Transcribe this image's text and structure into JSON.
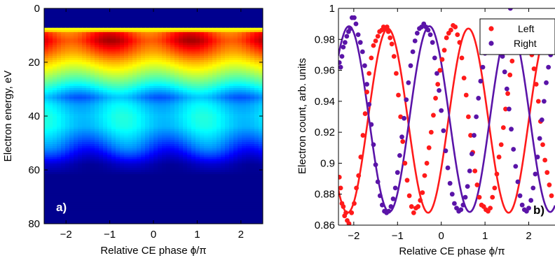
{
  "chart_data": [
    {
      "type": "heatmap",
      "panel_label": "a)",
      "xlabel": "Relative CE phase ϕ/π",
      "ylabel": "Electron energy, eV",
      "xlim": [
        -2.5,
        2.5
      ],
      "ylim": [
        80,
        0
      ],
      "x_ticks": [
        -2,
        -1,
        0,
        1,
        2
      ],
      "y_ticks": [
        0,
        20,
        40,
        60,
        80
      ],
      "colormap": "jet",
      "colormap_stops": [
        "#00008f",
        "#0000ff",
        "#0080ff",
        "#00ffff",
        "#80ff80",
        "#ffff00",
        "#ff8000",
        "#ff0000",
        "#800000"
      ],
      "energy_bands": [
        {
          "energy": 0,
          "level": 0.0,
          "mod": 0.0
        },
        {
          "energy": 6.8,
          "level": 0.0,
          "mod": 0.0
        },
        {
          "energy": 7.2,
          "level": 0.62,
          "mod": 0.0
        },
        {
          "energy": 8.2,
          "level": 0.62,
          "mod": 0.0
        },
        {
          "energy": 9,
          "level": 0.82,
          "mod": 0.08
        },
        {
          "energy": 12,
          "level": 0.88,
          "mod": 0.09
        },
        {
          "energy": 16,
          "level": 0.78,
          "mod": 0.06
        },
        {
          "energy": 20,
          "level": 0.66,
          "mod": 0.04
        },
        {
          "energy": 24,
          "level": 0.55,
          "mod": 0.04
        },
        {
          "energy": 27,
          "level": 0.46,
          "mod": 0.04
        },
        {
          "energy": 30,
          "level": 0.36,
          "mod": 0.05
        },
        {
          "energy": 33,
          "level": 0.26,
          "mod": 0.06
        },
        {
          "energy": 36,
          "level": 0.33,
          "mod": 0.05
        },
        {
          "energy": 40,
          "level": 0.36,
          "mod": 0.05
        },
        {
          "energy": 44,
          "level": 0.35,
          "mod": 0.05
        },
        {
          "energy": 48,
          "level": 0.28,
          "mod": 0.06
        },
        {
          "energy": 52,
          "level": 0.2,
          "mod": 0.07
        },
        {
          "energy": 55,
          "level": 0.12,
          "mod": 0.06
        },
        {
          "energy": 58,
          "level": 0.04,
          "mod": 0.03
        },
        {
          "energy": 62,
          "level": 0.0,
          "mod": 0.0
        },
        {
          "energy": 80,
          "level": 0.0,
          "mod": 0.0
        }
      ]
    },
    {
      "type": "scatter",
      "panel_label": "b)",
      "xlabel": "Relative CE phase ϕ/π",
      "ylabel": "Electron count, arb. units",
      "xlim": [
        -2.35,
        2.6
      ],
      "ylim": [
        0.86,
        1.0
      ],
      "x_ticks": [
        -2,
        -1,
        0,
        1,
        2
      ],
      "y_ticks": [
        0.86,
        0.88,
        0.9,
        0.92,
        0.94,
        0.96,
        0.98,
        1
      ],
      "y_tick_labels": [
        "0.86",
        "0.88",
        "0.9",
        "0.92",
        "0.94",
        "0.96",
        "0.98",
        "1"
      ],
      "legend_position": "top-right",
      "series": [
        {
          "name": "Left",
          "color": "#ff1a1a",
          "fit": {
            "mean": 0.9275,
            "amplitude": 0.0595,
            "period": 1.84,
            "peak_x": -1.22
          },
          "points": [
            [
              -2.33,
              0.891
            ],
            [
              -2.3,
              0.884
            ],
            [
              -2.27,
              0.874
            ],
            [
              -2.24,
              0.872
            ],
            [
              -2.21,
              0.866
            ],
            [
              -2.18,
              0.868
            ],
            [
              -2.15,
              0.863
            ],
            [
              -2.11,
              0.861
            ],
            [
              -2.05,
              0.868
            ],
            [
              -1.99,
              0.874
            ],
            [
              -1.94,
              0.884
            ],
            [
              -1.89,
              0.892
            ],
            [
              -1.84,
              0.904
            ],
            [
              -1.79,
              0.918
            ],
            [
              -1.74,
              0.932
            ],
            [
              -1.7,
              0.946
            ],
            [
              -1.65,
              0.958
            ],
            [
              -1.6,
              0.968
            ],
            [
              -1.55,
              0.976
            ],
            [
              -1.5,
              0.979
            ],
            [
              -1.45,
              0.982
            ],
            [
              -1.41,
              0.985
            ],
            [
              -1.36,
              0.986
            ],
            [
              -1.32,
              0.988
            ],
            [
              -1.28,
              0.987
            ],
            [
              -1.24,
              0.988
            ],
            [
              -1.21,
              0.985
            ],
            [
              -1.17,
              0.981
            ],
            [
              -1.13,
              0.977
            ],
            [
              -1.08,
              0.969
            ],
            [
              -1.03,
              0.958
            ],
            [
              -0.98,
              0.944
            ],
            [
              -0.93,
              0.93
            ],
            [
              -0.88,
              0.914
            ],
            [
              -0.83,
              0.9
            ],
            [
              -0.78,
              0.889
            ],
            [
              -0.73,
              0.879
            ],
            [
              -0.68,
              0.872
            ],
            [
              -0.63,
              0.868
            ],
            [
              -0.58,
              0.871
            ],
            [
              -0.53,
              0.872
            ],
            [
              -0.48,
              0.876
            ],
            [
              -0.43,
              0.881
            ],
            [
              -0.38,
              0.892
            ],
            [
              -0.33,
              0.9
            ],
            [
              -0.28,
              0.91
            ],
            [
              -0.23,
              0.92
            ],
            [
              -0.18,
              0.931
            ],
            [
              -0.13,
              0.942
            ],
            [
              -0.08,
              0.951
            ],
            [
              -0.03,
              0.96
            ],
            [
              0.02,
              0.967
            ],
            [
              0.07,
              0.973
            ],
            [
              0.12,
              0.981
            ],
            [
              0.17,
              0.984
            ],
            [
              0.22,
              0.986
            ],
            [
              0.27,
              0.989
            ],
            [
              0.32,
              0.988
            ],
            [
              0.37,
              0.983
            ],
            [
              0.42,
              0.978
            ],
            [
              0.47,
              0.968
            ],
            [
              0.52,
              0.955
            ],
            [
              0.57,
              0.944
            ],
            [
              0.62,
              0.93
            ],
            [
              0.67,
              0.918
            ],
            [
              0.72,
              0.907
            ],
            [
              0.77,
              0.895
            ],
            [
              0.82,
              0.886
            ],
            [
              0.87,
              0.878
            ],
            [
              0.92,
              0.873
            ],
            [
              0.97,
              0.872
            ],
            [
              1.02,
              0.87
            ],
            [
              1.07,
              0.869
            ],
            [
              1.12,
              0.871
            ],
            [
              1.17,
              0.878
            ],
            [
              1.22,
              0.884
            ],
            [
              1.27,
              0.893
            ],
            [
              1.32,
              0.904
            ],
            [
              1.37,
              0.912
            ],
            [
              1.42,
              0.923
            ],
            [
              1.47,
              0.935
            ],
            [
              1.52,
              0.945
            ],
            [
              1.57,
              0.957
            ],
            [
              1.62,
              0.966
            ],
            [
              1.67,
              0.972
            ],
            [
              1.72,
              0.98
            ],
            [
              1.77,
              0.985
            ],
            [
              1.82,
              0.987
            ],
            [
              1.87,
              0.989
            ],
            [
              1.92,
              0.987
            ],
            [
              1.97,
              0.984
            ],
            [
              2.02,
              0.978
            ],
            [
              2.07,
              0.97
            ],
            [
              2.12,
              0.961
            ],
            [
              2.17,
              0.951
            ],
            [
              2.22,
              0.94
            ],
            [
              2.27,
              0.927
            ],
            [
              2.32,
              0.912
            ],
            [
              2.37,
              0.902
            ],
            [
              2.42,
              0.894
            ],
            [
              2.47,
              0.886
            ],
            [
              2.52,
              0.879
            ]
          ]
        },
        {
          "name": "Right",
          "color": "#5a14a8",
          "fit": {
            "mean": 0.9285,
            "amplitude": 0.06,
            "period": 1.84,
            "peak_x": -2.11
          },
          "points": [
            [
              -2.33,
              0.965
            ],
            [
              -2.3,
              0.962
            ],
            [
              -2.27,
              0.969
            ],
            [
              -2.24,
              0.975
            ],
            [
              -2.2,
              0.978
            ],
            [
              -2.16,
              0.982
            ],
            [
              -2.12,
              0.985
            ],
            [
              -2.08,
              0.987
            ],
            [
              -2.04,
              0.994
            ],
            [
              -1.99,
              0.994
            ],
            [
              -1.95,
              0.99
            ],
            [
              -1.9,
              0.983
            ],
            [
              -1.85,
              0.978
            ],
            [
              -1.8,
              0.972
            ],
            [
              -1.75,
              0.963
            ],
            [
              -1.7,
              0.951
            ],
            [
              -1.65,
              0.938
            ],
            [
              -1.6,
              0.925
            ],
            [
              -1.55,
              0.912
            ],
            [
              -1.5,
              0.899
            ],
            [
              -1.45,
              0.888
            ],
            [
              -1.4,
              0.879
            ],
            [
              -1.35,
              0.873
            ],
            [
              -1.3,
              0.869
            ],
            [
              -1.25,
              0.868
            ],
            [
              -1.2,
              0.869
            ],
            [
              -1.15,
              0.872
            ],
            [
              -1.1,
              0.877
            ],
            [
              -1.05,
              0.884
            ],
            [
              -1.0,
              0.894
            ],
            [
              -0.95,
              0.905
            ],
            [
              -0.9,
              0.917
            ],
            [
              -0.85,
              0.929
            ],
            [
              -0.8,
              0.941
            ],
            [
              -0.75,
              0.952
            ],
            [
              -0.7,
              0.963
            ],
            [
              -0.65,
              0.972
            ],
            [
              -0.6,
              0.979
            ],
            [
              -0.55,
              0.984
            ],
            [
              -0.5,
              0.987
            ],
            [
              -0.45,
              0.988
            ],
            [
              -0.4,
              0.99
            ],
            [
              -0.35,
              0.988
            ],
            [
              -0.3,
              0.986
            ],
            [
              -0.25,
              0.983
            ],
            [
              -0.2,
              0.978
            ],
            [
              -0.15,
              0.968
            ],
            [
              -0.1,
              0.958
            ],
            [
              -0.05,
              0.947
            ],
            [
              0.0,
              0.934
            ],
            [
              0.05,
              0.921
            ],
            [
              0.1,
              0.908
            ],
            [
              0.15,
              0.897
            ],
            [
              0.2,
              0.887
            ],
            [
              0.25,
              0.88
            ],
            [
              0.3,
              0.874
            ],
            [
              0.35,
              0.871
            ],
            [
              0.4,
              0.869
            ],
            [
              0.45,
              0.87
            ],
            [
              0.5,
              0.873
            ],
            [
              0.55,
              0.878
            ],
            [
              0.6,
              0.885
            ],
            [
              0.65,
              0.895
            ],
            [
              0.7,
              0.906
            ],
            [
              0.75,
              0.918
            ],
            [
              0.8,
              0.93
            ],
            [
              0.85,
              0.942
            ],
            [
              0.9,
              0.953
            ],
            [
              0.95,
              0.962
            ],
            [
              1.0,
              0.971
            ],
            [
              1.05,
              0.978
            ],
            [
              1.1,
              0.983
            ],
            [
              1.15,
              0.987
            ],
            [
              1.2,
              0.988
            ],
            [
              1.25,
              0.986
            ],
            [
              1.3,
              0.983
            ],
            [
              1.35,
              0.977
            ],
            [
              1.4,
              0.969
            ],
            [
              1.45,
              0.959
            ],
            [
              1.5,
              0.948
            ],
            [
              1.55,
              0.935
            ],
            [
              1.6,
              0.922
            ],
            [
              1.65,
              0.909
            ],
            [
              1.7,
              0.898
            ],
            [
              1.75,
              0.888
            ],
            [
              1.8,
              0.879
            ],
            [
              1.85,
              0.873
            ],
            [
              1.9,
              0.87
            ],
            [
              1.95,
              0.869
            ],
            [
              2.0,
              0.871
            ],
            [
              2.05,
              0.876
            ],
            [
              2.1,
              0.884
            ],
            [
              2.15,
              0.893
            ],
            [
              2.2,
              0.904
            ],
            [
              2.25,
              0.916
            ],
            [
              2.3,
              0.928
            ],
            [
              2.35,
              0.94
            ],
            [
              2.4,
              0.952
            ],
            [
              2.45,
              0.962
            ],
            [
              2.5,
              0.97
            ],
            [
              2.55,
              0.978
            ],
            [
              1.58,
              1.0
            ]
          ]
        }
      ]
    }
  ]
}
